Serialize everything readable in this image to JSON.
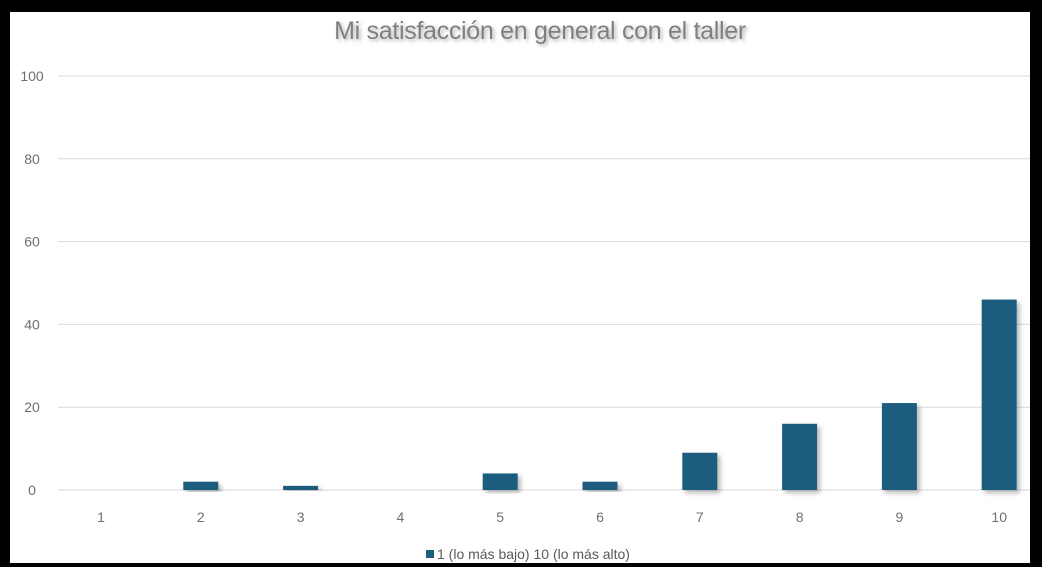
{
  "chart_data": {
    "type": "bar",
    "title": "Mi satisfacción en general con el taller",
    "categories": [
      "1",
      "2",
      "3",
      "4",
      "5",
      "6",
      "7",
      "8",
      "9",
      "10"
    ],
    "series": [
      {
        "name": "1 (lo más bajo) 10 (lo más alto)",
        "values": [
          0,
          2,
          1,
          0,
          4,
          2,
          9,
          16,
          21,
          46
        ]
      }
    ],
    "ylim": [
      0,
      100
    ],
    "yticks": [
      "0",
      "20",
      "40",
      "60",
      "80",
      "100"
    ],
    "grid": true,
    "legend": "bottom",
    "colors": {
      "bar": "#1f5d7f",
      "grid": "#d9d9d9"
    }
  }
}
